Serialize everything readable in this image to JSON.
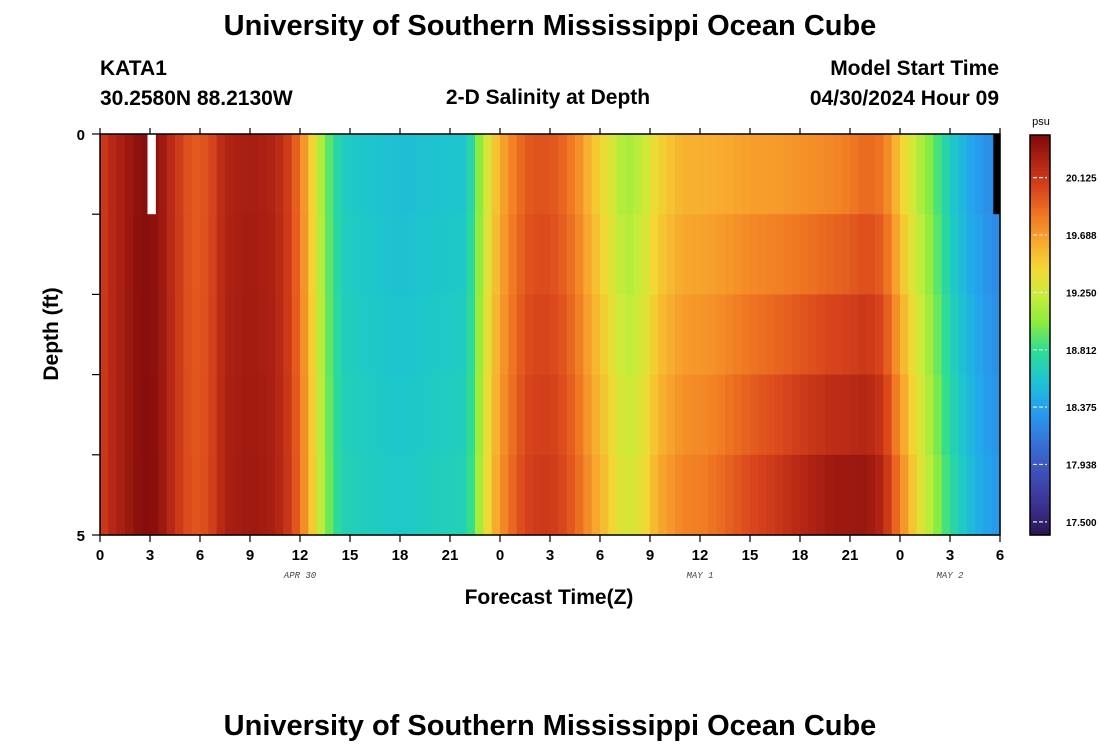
{
  "header": {
    "title": "University of Southern Mississippi Ocean Cube",
    "station": "KATA1",
    "coords": "30.2580N  88.2130W",
    "subtitle": "2-D Salinity at Depth",
    "model_label": "Model Start Time",
    "model_time": "04/30/2024 Hour 09"
  },
  "footer": {
    "title": "University of Southern Mississippi Ocean Cube"
  },
  "colors": {
    "scale": [
      "#2a1352",
      "#3b2f8a",
      "#3f47b0",
      "#3a63c8",
      "#2f86e6",
      "#22a8ee",
      "#1ec9c8",
      "#31de8f",
      "#8cec3f",
      "#c9ec3a",
      "#f2d834",
      "#f8a92e",
      "#f07822",
      "#d9451c",
      "#b22414",
      "#7f0a0a"
    ]
  },
  "chart_data": {
    "type": "heatmap",
    "title": "2-D Salinity at Depth",
    "xlabel": "Forecast Time(Z)",
    "ylabel": "Depth (ft)",
    "x_tick_labels": [
      "0",
      "3",
      "6",
      "9",
      "12",
      "15",
      "18",
      "21",
      "0",
      "3",
      "6",
      "9",
      "12",
      "15",
      "18",
      "21",
      "0",
      "3",
      "6"
    ],
    "x_range_hours": [
      0,
      54
    ],
    "date_labels": [
      {
        "text": "APR 30",
        "hour": 12
      },
      {
        "text": "MAY 1",
        "hour": 36
      },
      {
        "text": "MAY 2",
        "hour": 51
      }
    ],
    "y_tick_labels": [
      {
        "text": "0",
        "depth": 0
      },
      {
        "text": "5",
        "depth": 5
      }
    ],
    "ylim": [
      0,
      5
    ],
    "colorbar": {
      "unit": "psu",
      "range": [
        17.4,
        20.45
      ],
      "ticks": [
        "20.125",
        "19.688",
        "19.250",
        "18.812",
        "18.375",
        "17.938",
        "17.500"
      ]
    },
    "depth_layers": 5,
    "time_profile": [
      [
        0,
        20.05
      ],
      [
        0.5,
        20.2
      ],
      [
        1.5,
        20.3
      ],
      [
        2.5,
        20.42
      ],
      [
        3.5,
        20.38
      ],
      [
        4.5,
        20.15
      ],
      [
        5.5,
        19.95
      ],
      [
        6.5,
        20.0
      ],
      [
        7.5,
        20.25
      ],
      [
        9,
        20.3
      ],
      [
        10.5,
        20.25
      ],
      [
        11.5,
        20.05
      ],
      [
        12.5,
        19.6
      ],
      [
        13.5,
        19.0
      ],
      [
        14.5,
        18.65
      ],
      [
        16,
        18.6
      ],
      [
        18,
        18.55
      ],
      [
        20,
        18.58
      ],
      [
        22,
        18.6
      ],
      [
        22.8,
        19.05
      ],
      [
        23.5,
        19.45
      ],
      [
        24.5,
        19.75
      ],
      [
        25.5,
        19.95
      ],
      [
        26.5,
        20.0
      ],
      [
        27.5,
        19.95
      ],
      [
        28.5,
        19.8
      ],
      [
        29.5,
        19.55
      ],
      [
        30.5,
        19.35
      ],
      [
        31.5,
        19.1
      ],
      [
        32.5,
        19.2
      ],
      [
        33.5,
        19.45
      ],
      [
        35,
        19.6
      ],
      [
        37,
        19.62
      ],
      [
        39,
        19.68
      ],
      [
        41,
        19.7
      ],
      [
        43,
        19.75
      ],
      [
        44.5,
        19.8
      ],
      [
        46,
        19.9
      ],
      [
        47,
        19.85
      ],
      [
        48,
        19.5
      ],
      [
        49,
        19.2
      ],
      [
        50,
        18.95
      ],
      [
        51,
        18.65
      ],
      [
        52,
        18.45
      ],
      [
        53,
        18.3
      ],
      [
        54,
        18.2
      ]
    ],
    "depth_profile": [
      [
        0,
        0.0
      ],
      [
        15,
        0.05
      ],
      [
        24,
        0.1
      ],
      [
        30,
        0.15
      ],
      [
        36,
        0.2
      ],
      [
        39,
        0.35
      ],
      [
        42,
        0.5
      ],
      [
        44,
        0.55
      ],
      [
        46,
        0.45
      ],
      [
        48,
        0.3
      ],
      [
        50,
        0.15
      ],
      [
        54,
        0.1
      ]
    ],
    "missing_cells": [
      {
        "hour_start": 2.85,
        "hour_end": 3.35,
        "layer": 0,
        "color": "white"
      },
      {
        "hour_start": 53.6,
        "hour_end": 54,
        "layer": 0,
        "color": "black"
      }
    ]
  }
}
